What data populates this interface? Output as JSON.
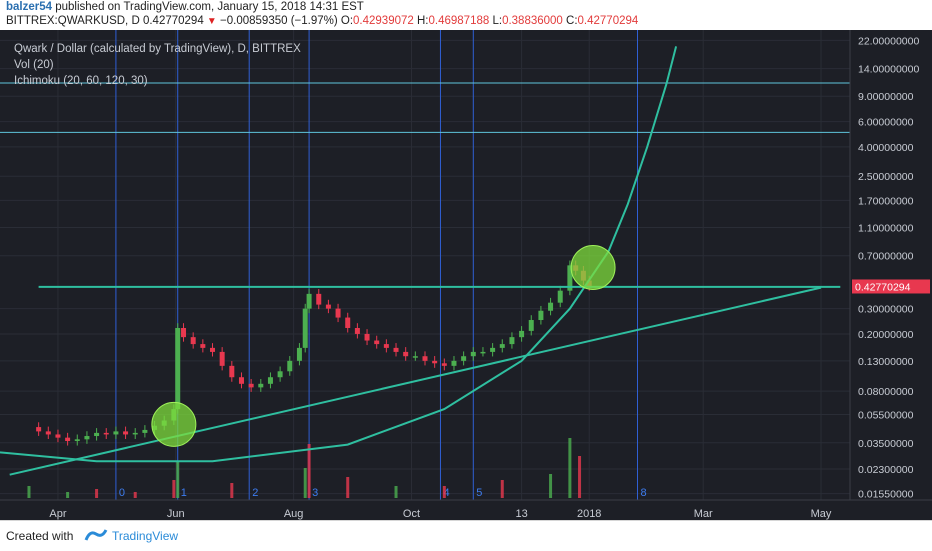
{
  "header": {
    "username": "balzer54",
    "published_text": "published on TradingView.com, January 15, 2018 14:31 EST",
    "symbol": "BITTREX:QWARKUSD, D",
    "last_price": "0.42770294",
    "change": "−0.00859350 (−1.97%)",
    "o_label": "O:",
    "o_value": "0.42939072",
    "h_label": "H:",
    "h_value": "0.46987188",
    "l_label": "L:",
    "l_value": "0.38836000",
    "c_label": "C:",
    "c_value": "0.42770294"
  },
  "legend": {
    "title": "Qwark / Dollar (calculated by TradingView), D, BITTREX",
    "vol": "Vol (20)",
    "ichimoku": "Ichimoku (20, 60, 120, 30)"
  },
  "footer": {
    "created_with": "Created with",
    "brand": "TradingView"
  },
  "colors": {
    "background": "#1d1f26",
    "trendline": "#2fbfa0",
    "hline": "#5fc6dc",
    "circle_fill": "#7ddc3c",
    "vline": "#2f5fd4",
    "price_badge": "#e8384f",
    "up_candle": "#4caf50",
    "down_candle": "#e8384f"
  },
  "chart_data": {
    "type": "line",
    "scale": "log",
    "y_ticks": [
      "22.00000000",
      "14.00000000",
      "9.00000000",
      "6.00000000",
      "4.00000000",
      "2.50000000",
      "1.70000000",
      "1.10000000",
      "0.70000000",
      "0.30000000",
      "0.20000000",
      "0.13000000",
      "0.08000000",
      "0.05500000",
      "0.03500000",
      "0.02300000",
      "0.01550000"
    ],
    "y_tick_values": [
      22,
      14,
      9,
      6,
      4,
      2.5,
      1.7,
      1.1,
      0.7,
      0.3,
      0.2,
      0.13,
      0.08,
      0.055,
      0.035,
      0.023,
      0.0155
    ],
    "ylim": [
      0.014,
      26
    ],
    "x_ticks": [
      "Apr",
      "Jun",
      "Aug",
      "Oct",
      "13",
      "2018",
      "Mar",
      "May"
    ],
    "x_tick_days": [
      0,
      61,
      122,
      183,
      240,
      275,
      334,
      395
    ],
    "xlim": [
      -30,
      410
    ],
    "horizontal_levels": [
      {
        "value": 11.11732196,
        "label": "11.11732196"
      },
      {
        "value": 5.04779084,
        "label": "5.04779084"
      }
    ],
    "support_level": 0.425,
    "last_price": {
      "value": 0.42770294,
      "label": "0.42770294"
    },
    "vertical_line_labels": [
      {
        "day": 30,
        "label": "0"
      },
      {
        "day": 62,
        "label": "1"
      },
      {
        "day": 99,
        "label": "2"
      },
      {
        "day": 130,
        "label": "3"
      },
      {
        "day": 198,
        "label": "4"
      },
      {
        "day": 215,
        "label": "5"
      },
      {
        "day": 300,
        "label": "8"
      }
    ],
    "price_series": [
      {
        "day": -15,
        "close": 0.045
      },
      {
        "day": -10,
        "close": 0.042
      },
      {
        "day": -5,
        "close": 0.04
      },
      {
        "day": 0,
        "close": 0.038
      },
      {
        "day": 5,
        "close": 0.036
      },
      {
        "day": 10,
        "close": 0.037
      },
      {
        "day": 15,
        "close": 0.039
      },
      {
        "day": 20,
        "close": 0.041
      },
      {
        "day": 25,
        "close": 0.04
      },
      {
        "day": 30,
        "close": 0.042
      },
      {
        "day": 35,
        "close": 0.04
      },
      {
        "day": 40,
        "close": 0.041
      },
      {
        "day": 45,
        "close": 0.043
      },
      {
        "day": 50,
        "close": 0.046
      },
      {
        "day": 55,
        "close": 0.05
      },
      {
        "day": 60,
        "close": 0.06
      },
      {
        "day": 62,
        "close": 0.22
      },
      {
        "day": 65,
        "close": 0.19
      },
      {
        "day": 70,
        "close": 0.17
      },
      {
        "day": 75,
        "close": 0.16
      },
      {
        "day": 80,
        "close": 0.15
      },
      {
        "day": 85,
        "close": 0.12
      },
      {
        "day": 90,
        "close": 0.1
      },
      {
        "day": 95,
        "close": 0.09
      },
      {
        "day": 100,
        "close": 0.085
      },
      {
        "day": 105,
        "close": 0.09
      },
      {
        "day": 110,
        "close": 0.1
      },
      {
        "day": 115,
        "close": 0.11
      },
      {
        "day": 120,
        "close": 0.13
      },
      {
        "day": 125,
        "close": 0.16
      },
      {
        "day": 128,
        "close": 0.3
      },
      {
        "day": 130,
        "close": 0.38
      },
      {
        "day": 135,
        "close": 0.32
      },
      {
        "day": 140,
        "close": 0.3
      },
      {
        "day": 145,
        "close": 0.26
      },
      {
        "day": 150,
        "close": 0.22
      },
      {
        "day": 155,
        "close": 0.2
      },
      {
        "day": 160,
        "close": 0.18
      },
      {
        "day": 165,
        "close": 0.17
      },
      {
        "day": 170,
        "close": 0.16
      },
      {
        "day": 175,
        "close": 0.15
      },
      {
        "day": 180,
        "close": 0.14
      },
      {
        "day": 185,
        "close": 0.14
      },
      {
        "day": 190,
        "close": 0.13
      },
      {
        "day": 195,
        "close": 0.125
      },
      {
        "day": 200,
        "close": 0.12
      },
      {
        "day": 205,
        "close": 0.13
      },
      {
        "day": 210,
        "close": 0.14
      },
      {
        "day": 215,
        "close": 0.15
      },
      {
        "day": 220,
        "close": 0.15
      },
      {
        "day": 225,
        "close": 0.16
      },
      {
        "day": 230,
        "close": 0.17
      },
      {
        "day": 235,
        "close": 0.19
      },
      {
        "day": 240,
        "close": 0.21
      },
      {
        "day": 245,
        "close": 0.25
      },
      {
        "day": 250,
        "close": 0.29
      },
      {
        "day": 255,
        "close": 0.33
      },
      {
        "day": 260,
        "close": 0.4
      },
      {
        "day": 265,
        "close": 0.6
      },
      {
        "day": 268,
        "close": 0.55
      },
      {
        "day": 272,
        "close": 0.47
      },
      {
        "day": 275,
        "close": 0.43
      }
    ],
    "trendlines": [
      {
        "name": "parabolic",
        "points": [
          [
            -30,
            0.03
          ],
          [
            20,
            0.026
          ],
          [
            80,
            0.026
          ],
          [
            150,
            0.034
          ],
          [
            200,
            0.06
          ],
          [
            240,
            0.13
          ],
          [
            265,
            0.3
          ],
          [
            285,
            0.75
          ],
          [
            295,
            1.6
          ],
          [
            305,
            4.0
          ],
          [
            315,
            11
          ],
          [
            320,
            20
          ]
        ]
      },
      {
        "name": "support",
        "points": [
          [
            -25,
            0.021
          ],
          [
            395,
            0.42
          ]
        ]
      },
      {
        "name": "horizontal",
        "points": [
          [
            -10,
            0.425
          ],
          [
            405,
            0.425
          ]
        ]
      }
    ],
    "circles": [
      {
        "day": 60,
        "value": 0.047
      },
      {
        "day": 277,
        "value": 0.58
      }
    ],
    "volume": [
      {
        "day": -15,
        "v": 0.2
      },
      {
        "day": 5,
        "v": 0.1
      },
      {
        "day": 20,
        "v": 0.15
      },
      {
        "day": 40,
        "v": 0.1
      },
      {
        "day": 60,
        "v": 0.3
      },
      {
        "day": 62,
        "v": 0.6
      },
      {
        "day": 90,
        "v": 0.25
      },
      {
        "day": 128,
        "v": 0.5
      },
      {
        "day": 130,
        "v": 0.9
      },
      {
        "day": 150,
        "v": 0.35
      },
      {
        "day": 175,
        "v": 0.2
      },
      {
        "day": 200,
        "v": 0.2
      },
      {
        "day": 230,
        "v": 0.3
      },
      {
        "day": 255,
        "v": 0.4
      },
      {
        "day": 265,
        "v": 1.0
      },
      {
        "day": 270,
        "v": 0.7
      }
    ]
  }
}
